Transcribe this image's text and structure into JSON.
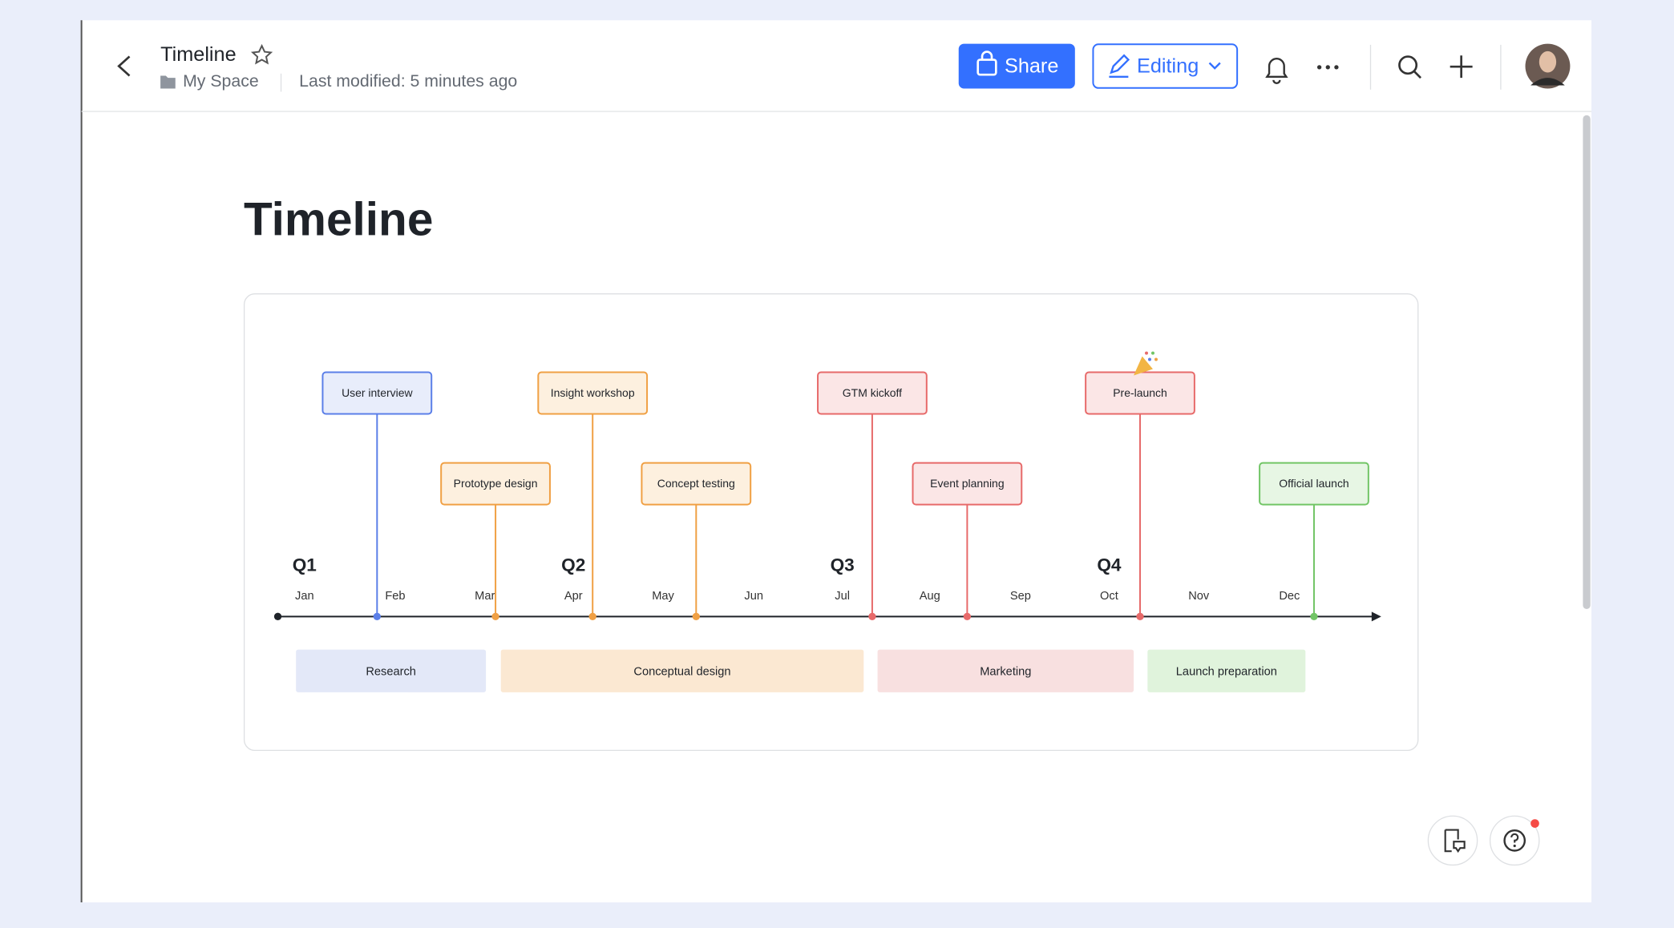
{
  "header": {
    "title": "Timeline",
    "location": "My Space",
    "modified": "Last modified: 5 minutes ago",
    "share": "Share",
    "mode": "Editing"
  },
  "document": {
    "title": "Timeline",
    "timeline": {
      "quarters": [
        "Q1",
        "Q2",
        "Q3",
        "Q4"
      ],
      "months": [
        "Jan",
        "Feb",
        "Mar",
        "Apr",
        "May",
        "Jun",
        "Jul",
        "Aug",
        "Sep",
        "Oct",
        "Nov",
        "Dec"
      ],
      "milestones": [
        {
          "label": "User interview",
          "color": "#5b7fe8"
        },
        {
          "label": "Prototype design",
          "color": "#f0a044"
        },
        {
          "label": "Insight workshop",
          "color": "#f0a044"
        },
        {
          "label": "Concept testing",
          "color": "#f0a044"
        },
        {
          "label": "GTM kickoff",
          "color": "#e76a6a"
        },
        {
          "label": "Event planning",
          "color": "#e76a6a"
        },
        {
          "label": "Pre-launch",
          "color": "#e76a6a"
        },
        {
          "label": "Official launch",
          "color": "#72c566"
        }
      ],
      "phases": [
        {
          "label": "Research",
          "color": "#e3e8f8"
        },
        {
          "label": "Conceptual design",
          "color": "#fbe8d2"
        },
        {
          "label": "Marketing",
          "color": "#f8e0e0"
        },
        {
          "label": "Launch preparation",
          "color": "#e0f3dc"
        }
      ]
    }
  }
}
